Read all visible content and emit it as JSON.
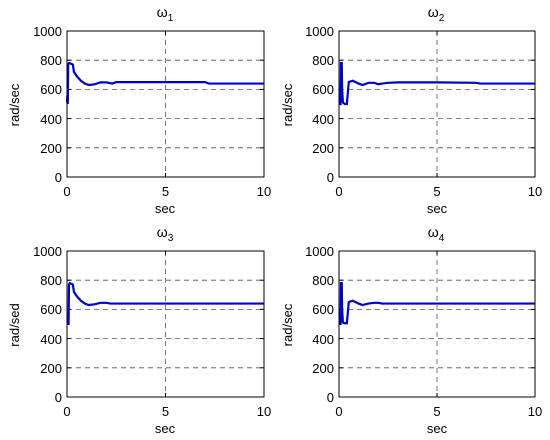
{
  "figure": {
    "background": "#ffffff",
    "line_color": "#0000cc",
    "grid_color": "#555555"
  },
  "chart_data": [
    {
      "type": "line",
      "title": "ω",
      "title_subscript": "1",
      "xlabel": "sec",
      "ylabel": "rad/sec",
      "xlim": [
        0,
        10
      ],
      "ylim": [
        0,
        1000
      ],
      "xticks": [
        "0",
        "5",
        "10"
      ],
      "yticks": [
        "0",
        "200",
        "400",
        "600",
        "800",
        "1000"
      ],
      "grid": true,
      "series": [
        {
          "x": [
            0,
            0.02,
            0.04,
            0.06,
            0.1,
            0.12,
            0.14,
            0.3,
            0.35,
            0.5,
            0.7,
            0.9,
            1.1,
            1.4,
            1.7,
            2.0,
            2.3,
            2.5,
            3.0,
            5.0,
            7.0,
            7.2,
            10.0
          ],
          "y": [
            510,
            560,
            500,
            770,
            780,
            780,
            780,
            770,
            720,
            690,
            660,
            640,
            630,
            635,
            648,
            648,
            640,
            650,
            650,
            650,
            650,
            640,
            640
          ]
        }
      ]
    },
    {
      "type": "line",
      "title": "ω",
      "title_subscript": "2",
      "xlabel": "sec",
      "ylabel": "rad/sec",
      "xlim": [
        0,
        10
      ],
      "ylim": [
        0,
        1000
      ],
      "xticks": [
        "0",
        "5",
        "10"
      ],
      "yticks": [
        "0",
        "200",
        "400",
        "600",
        "800",
        "1000"
      ],
      "grid": true,
      "series": [
        {
          "x": [
            0,
            0.08,
            0.1,
            0.14,
            0.16,
            0.2,
            0.3,
            0.4,
            0.5,
            0.7,
            1.0,
            1.2,
            1.5,
            1.8,
            2.0,
            2.2,
            2.5,
            3.0,
            5.0,
            7.0,
            7.2,
            10.0
          ],
          "y": [
            500,
            500,
            780,
            780,
            600,
            510,
            500,
            500,
            650,
            660,
            640,
            630,
            645,
            645,
            635,
            640,
            645,
            648,
            648,
            645,
            640,
            640
          ]
        }
      ]
    },
    {
      "type": "line",
      "title": "ω",
      "title_subscript": "3",
      "xlabel": "sec",
      "ylabel": "rad/sed",
      "xlim": [
        0,
        10
      ],
      "ylim": [
        0,
        1000
      ],
      "xticks": [
        "0",
        "5",
        "10"
      ],
      "yticks": [
        "0",
        "200",
        "400",
        "600",
        "800",
        "1000"
      ],
      "grid": true,
      "series": [
        {
          "x": [
            0,
            0.08,
            0.1,
            0.14,
            0.3,
            0.35,
            0.5,
            0.7,
            0.9,
            1.1,
            1.4,
            1.7,
            2.0,
            2.2,
            3.0,
            10.0
          ],
          "y": [
            500,
            500,
            770,
            780,
            770,
            720,
            690,
            660,
            640,
            630,
            635,
            645,
            645,
            640,
            640,
            640
          ]
        }
      ]
    },
    {
      "type": "line",
      "title": "ω",
      "title_subscript": "4",
      "xlabel": "sec",
      "ylabel": "rad/sec",
      "xlim": [
        0,
        10
      ],
      "ylim": [
        0,
        1000
      ],
      "xticks": [
        "0",
        "5",
        "10"
      ],
      "yticks": [
        "0",
        "200",
        "400",
        "600",
        "800",
        "1000"
      ],
      "grid": true,
      "series": [
        {
          "x": [
            0,
            0.08,
            0.1,
            0.14,
            0.16,
            0.2,
            0.3,
            0.4,
            0.5,
            0.7,
            1.0,
            1.2,
            1.5,
            1.8,
            2.0,
            2.2,
            3.0,
            10.0
          ],
          "y": [
            500,
            500,
            780,
            780,
            600,
            510,
            505,
            505,
            650,
            660,
            640,
            630,
            640,
            645,
            645,
            640,
            640,
            640
          ]
        }
      ]
    }
  ]
}
